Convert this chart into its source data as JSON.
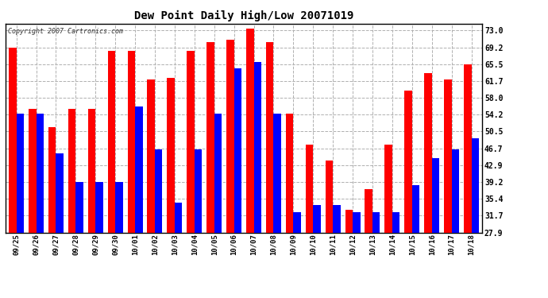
{
  "title": "Dew Point Daily High/Low 20071019",
  "copyright": "Copyright 2007 Cartronics.com",
  "dates": [
    "09/25",
    "09/26",
    "09/27",
    "09/28",
    "09/29",
    "09/30",
    "10/01",
    "10/02",
    "10/03",
    "10/04",
    "10/05",
    "10/06",
    "10/07",
    "10/08",
    "10/09",
    "10/10",
    "10/11",
    "10/12",
    "10/13",
    "10/14",
    "10/15",
    "10/16",
    "10/17",
    "10/18"
  ],
  "highs": [
    69.2,
    55.5,
    51.5,
    55.5,
    55.5,
    68.5,
    68.5,
    62.0,
    62.5,
    68.5,
    70.5,
    71.0,
    73.5,
    70.5,
    54.5,
    47.5,
    44.0,
    33.0,
    37.5,
    47.5,
    59.5,
    63.5,
    62.0,
    65.5
  ],
  "lows": [
    54.5,
    54.5,
    45.5,
    39.2,
    39.2,
    39.2,
    56.0,
    46.5,
    34.5,
    46.5,
    54.5,
    64.5,
    66.0,
    54.5,
    32.5,
    34.0,
    34.0,
    32.5,
    32.5,
    32.5,
    38.5,
    44.5,
    46.5,
    49.0
  ],
  "high_color": "#ff0000",
  "low_color": "#0000ff",
  "bg_color": "#ffffff",
  "plot_bg_color": "#ffffff",
  "grid_color": "#b0b0b0",
  "yticks": [
    27.9,
    31.7,
    35.4,
    39.2,
    42.9,
    46.7,
    50.5,
    54.2,
    58.0,
    61.7,
    65.5,
    69.2,
    73.0
  ],
  "ymin": 27.9,
  "ymax": 74.5,
  "bar_width": 0.38
}
